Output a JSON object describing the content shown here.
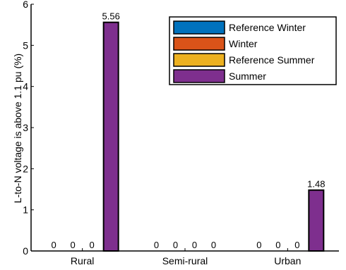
{
  "chart_data": {
    "type": "bar",
    "categories": [
      "Rural",
      "Semi-rural",
      "Urban"
    ],
    "series": [
      {
        "name": "Reference Winter",
        "values": [
          0,
          0,
          0
        ],
        "color": "#0072BD"
      },
      {
        "name": "Winter",
        "values": [
          0,
          0,
          0
        ],
        "color": "#D95319"
      },
      {
        "name": "Reference Summer",
        "values": [
          0,
          0,
          0
        ],
        "color": "#EDB120"
      },
      {
        "name": "Summer",
        "values": [
          5.56,
          0,
          1.48
        ],
        "color": "#7E2F8E"
      }
    ],
    "data_labels": [
      [
        "0",
        "0",
        "0",
        "5.56"
      ],
      [
        "0",
        "0",
        "0",
        "0"
      ],
      [
        "0",
        "0",
        "0",
        "1.48"
      ]
    ],
    "ylabel": "L-to-N voltage is above 1.1 pu (%)",
    "xlabel": "",
    "ylim": [
      0,
      6
    ],
    "yticks": [
      0,
      1,
      2,
      3,
      4,
      5,
      6
    ],
    "legend_position": "top-right",
    "grid": false
  }
}
